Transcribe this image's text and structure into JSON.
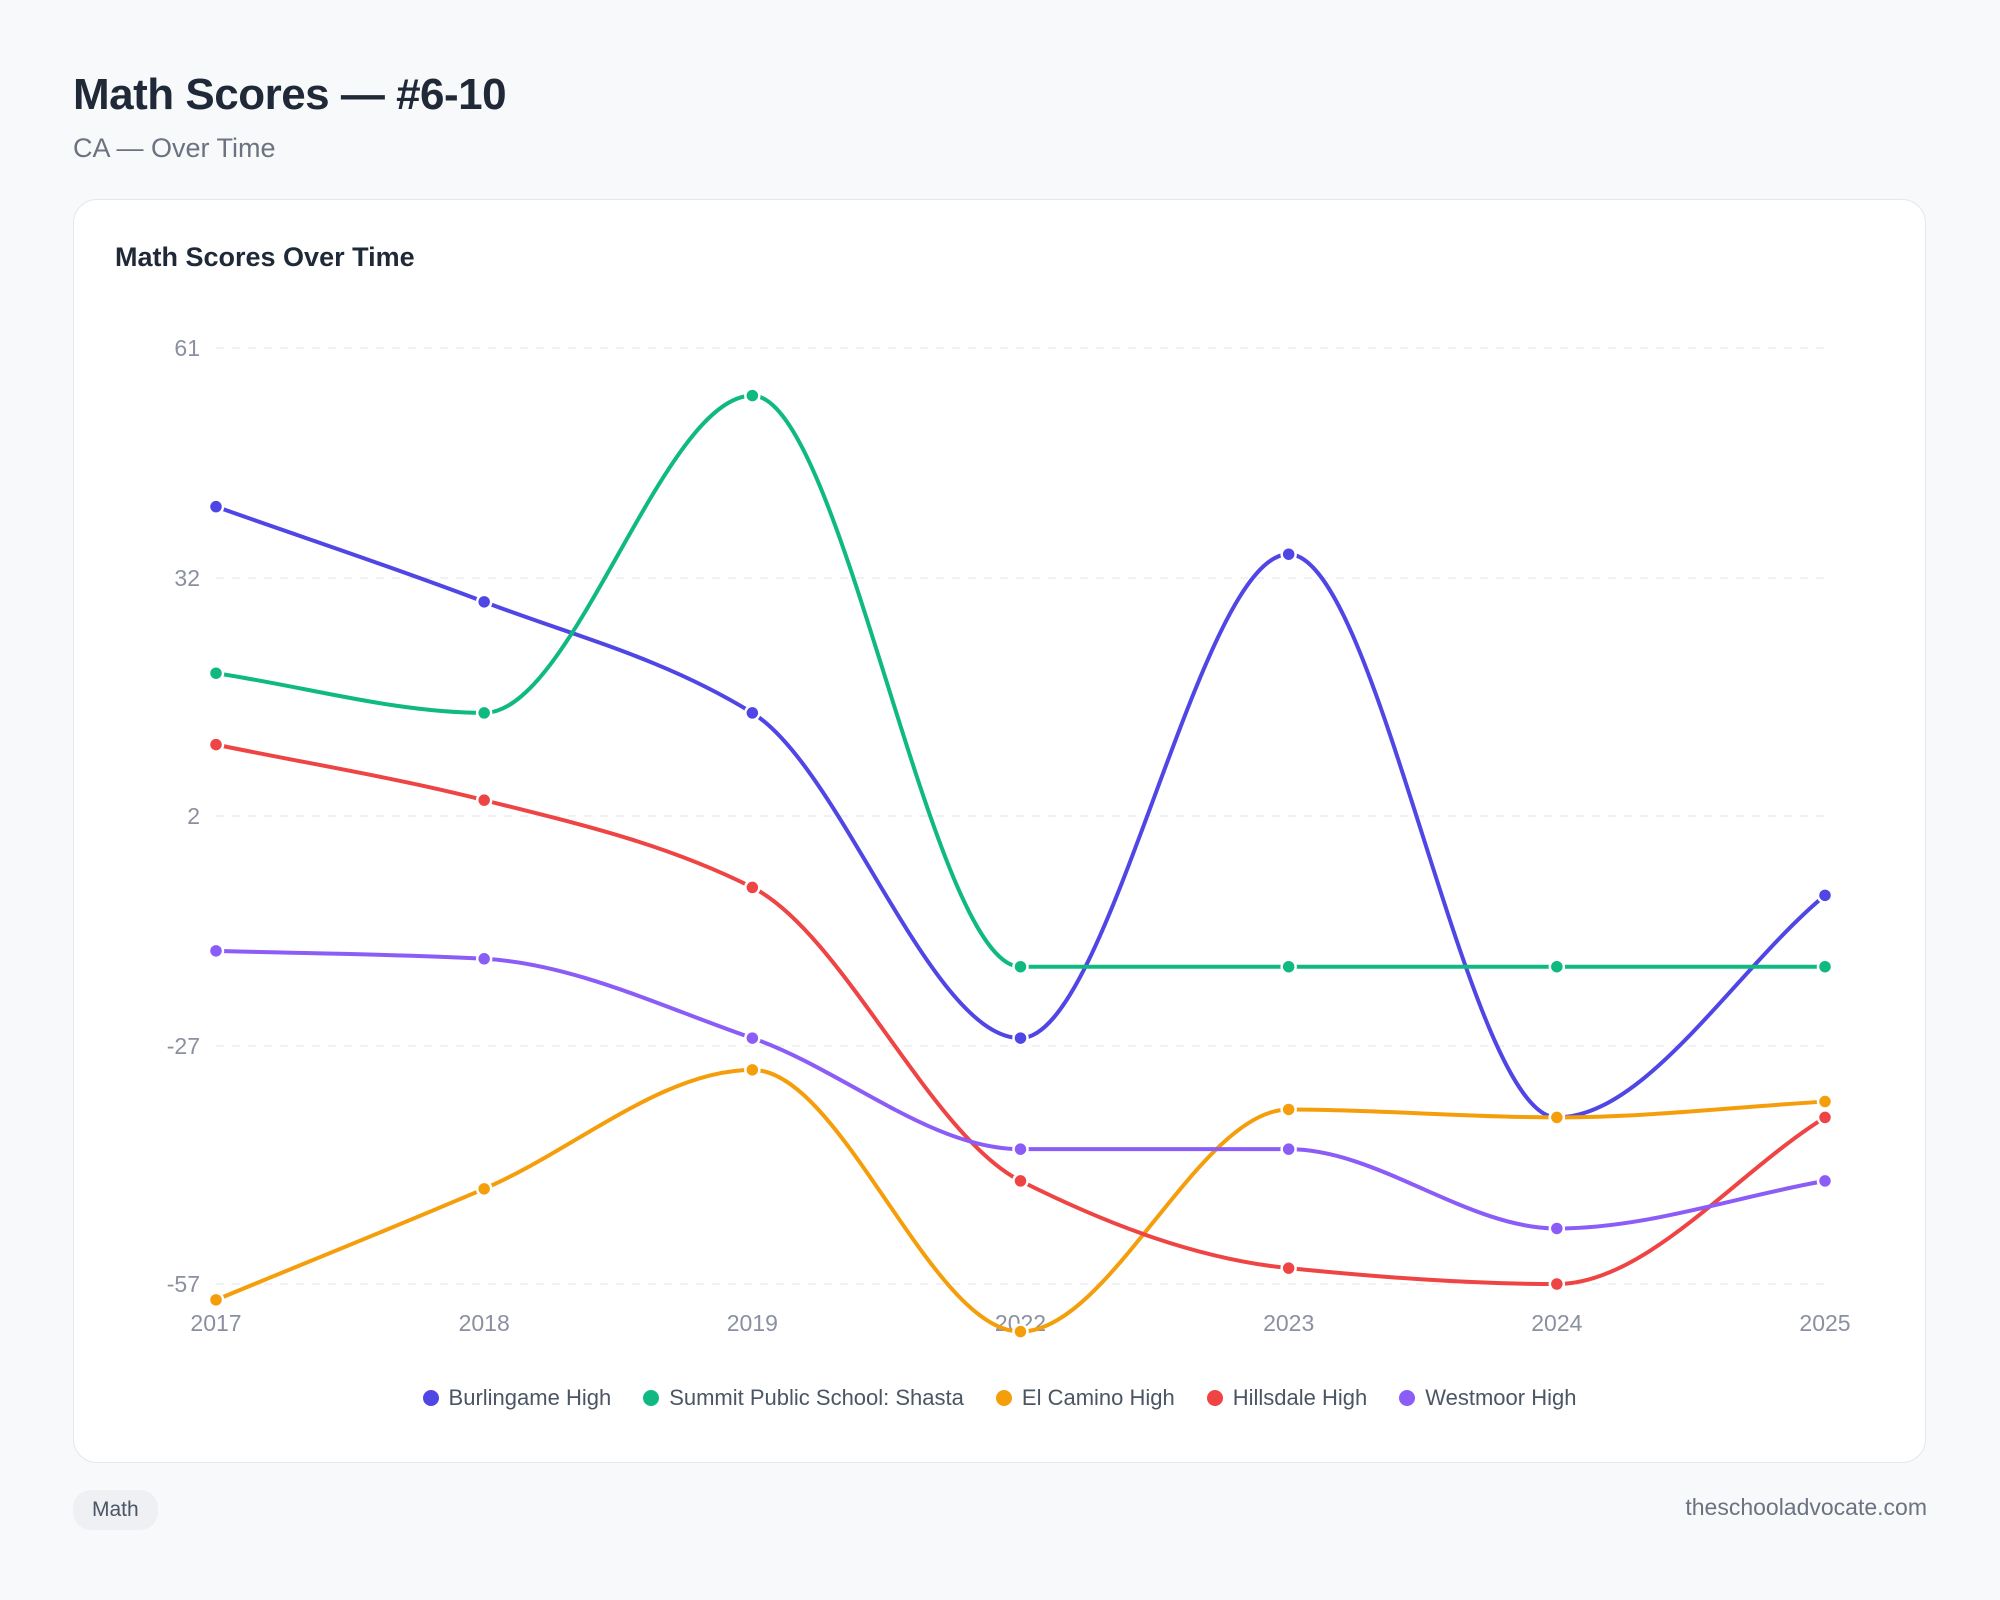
{
  "header": {
    "title": "Math Scores — #6-10",
    "subtitle": "CA — Over Time"
  },
  "card": {
    "title": "Math Scores Over Time"
  },
  "footer": {
    "tag": "Math",
    "source": "theschooladvocate.com"
  },
  "chart_data": {
    "type": "line",
    "title": "Math Scores Over Time",
    "x": [
      "2017",
      "2018",
      "2019",
      "2022",
      "2023",
      "2024",
      "2025"
    ],
    "y_ticks": [
      61,
      32,
      2,
      -27,
      -57
    ],
    "ylim": [
      -57,
      61
    ],
    "grid": true,
    "legend_position": "bottom",
    "series": [
      {
        "name": "Burlingame High",
        "color": "#4f46e5",
        "values": [
          41,
          29,
          15,
          -26,
          35,
          -36,
          -8
        ]
      },
      {
        "name": "Summit Public School: Shasta",
        "color": "#10b981",
        "values": [
          20,
          15,
          55,
          -17,
          -17,
          -17,
          -17
        ]
      },
      {
        "name": "El Camino High",
        "color": "#f59e0b",
        "values": [
          -59,
          -45,
          -30,
          -63,
          -35,
          -36,
          -34
        ]
      },
      {
        "name": "Hillsdale High",
        "color": "#ef4444",
        "values": [
          11,
          4,
          -7,
          -44,
          -55,
          -57,
          -36
        ]
      },
      {
        "name": "Westmoor High",
        "color": "#8b5cf6",
        "values": [
          -15,
          -16,
          -26,
          -40,
          -40,
          -50,
          -44
        ]
      }
    ]
  }
}
